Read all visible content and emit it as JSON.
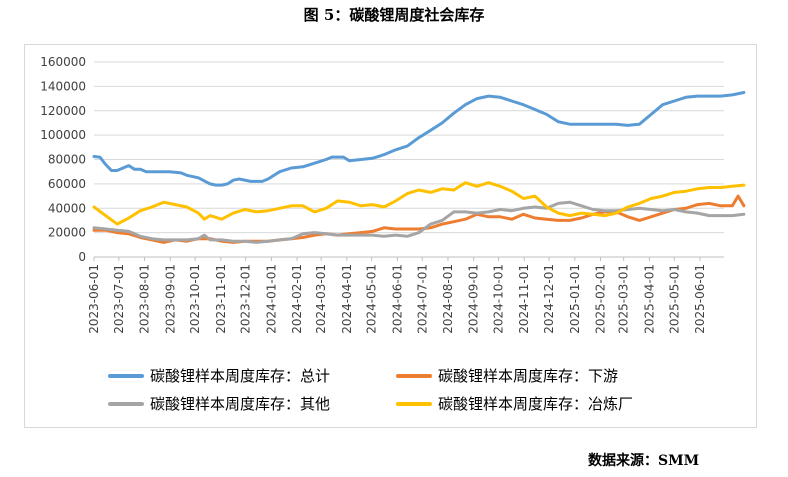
{
  "chart_data": {
    "type": "line",
    "title": "图 5：碳酸锂周度社会库存",
    "source": "数据来源：SMM",
    "ylim": [
      0,
      160000
    ],
    "y_ticks": [
      "0",
      "20000",
      "40000",
      "60000",
      "80000",
      "100000",
      "120000",
      "140000",
      "160000"
    ],
    "x_ticks": [
      "2023-06-01",
      "2023-07-01",
      "2023-08-01",
      "2023-09-01",
      "2023-10-01",
      "2023-11-01",
      "2023-12-01",
      "2024-01-01",
      "2024-02-01",
      "2024-03-01",
      "2024-04-01",
      "2024-05-01",
      "2024-06-01",
      "2024-07-01",
      "2024-08-01",
      "2024-09-01",
      "2024-10-01",
      "2024-11-01",
      "2024-12-01",
      "2025-01-01",
      "2025-02-01",
      "2025-03-01",
      "2025-04-01",
      "2025-05-01",
      "2025-06-01"
    ],
    "x_range": [
      "2023-06-01",
      "2025-06-30"
    ],
    "grid": "horizontal",
    "legend_position": "bottom",
    "series": [
      {
        "name": "碳酸锂样本周度库存：总计",
        "color": "#5b9bd5",
        "points": [
          [
            "2023-06-01",
            82500
          ],
          [
            "2023-06-08",
            82000
          ],
          [
            "2023-06-15",
            76000
          ],
          [
            "2023-06-22",
            71000
          ],
          [
            "2023-06-29",
            71000
          ],
          [
            "2023-07-06",
            73000
          ],
          [
            "2023-07-13",
            75000
          ],
          [
            "2023-07-20",
            72000
          ],
          [
            "2023-07-27",
            72000
          ],
          [
            "2023-08-03",
            70000
          ],
          [
            "2023-08-17",
            70000
          ],
          [
            "2023-08-31",
            70000
          ],
          [
            "2023-09-14",
            69000
          ],
          [
            "2023-09-21",
            67000
          ],
          [
            "2023-10-05",
            65000
          ],
          [
            "2023-10-19",
            60000
          ],
          [
            "2023-10-26",
            59000
          ],
          [
            "2023-11-02",
            59000
          ],
          [
            "2023-11-09",
            60000
          ],
          [
            "2023-11-16",
            63000
          ],
          [
            "2023-11-23",
            64000
          ],
          [
            "2023-12-07",
            62000
          ],
          [
            "2023-12-21",
            62000
          ],
          [
            "2023-12-28",
            64000
          ],
          [
            "2024-01-11",
            70000
          ],
          [
            "2024-01-25",
            73000
          ],
          [
            "2024-02-08",
            74000
          ],
          [
            "2024-02-22",
            77000
          ],
          [
            "2024-03-07",
            80000
          ],
          [
            "2024-03-14",
            82000
          ],
          [
            "2024-03-28",
            82000
          ],
          [
            "2024-04-04",
            79000
          ],
          [
            "2024-04-18",
            80000
          ],
          [
            "2024-05-02",
            81000
          ],
          [
            "2024-05-16",
            84000
          ],
          [
            "2024-05-30",
            88000
          ],
          [
            "2024-06-13",
            91000
          ],
          [
            "2024-06-27",
            98000
          ],
          [
            "2024-07-11",
            104000
          ],
          [
            "2024-07-25",
            110000
          ],
          [
            "2024-08-08",
            118000
          ],
          [
            "2024-08-22",
            125000
          ],
          [
            "2024-09-05",
            130000
          ],
          [
            "2024-09-19",
            132000
          ],
          [
            "2024-10-03",
            131000
          ],
          [
            "2024-10-17",
            128000
          ],
          [
            "2024-10-31",
            125000
          ],
          [
            "2024-11-14",
            121000
          ],
          [
            "2024-11-28",
            117000
          ],
          [
            "2024-12-12",
            111000
          ],
          [
            "2024-12-26",
            109000
          ],
          [
            "2025-01-09",
            109000
          ],
          [
            "2025-01-23",
            109000
          ],
          [
            "2025-02-06",
            109000
          ],
          [
            "2025-02-20",
            109000
          ],
          [
            "2025-03-06",
            108000
          ],
          [
            "2025-03-20",
            109000
          ],
          [
            "2025-04-03",
            117000
          ],
          [
            "2025-04-17",
            125000
          ],
          [
            "2025-05-01",
            128000
          ],
          [
            "2025-05-15",
            131000
          ],
          [
            "2025-05-29",
            132000
          ],
          [
            "2025-06-12",
            132000
          ],
          [
            "2025-06-26",
            132000
          ],
          [
            "2025-07-10",
            133000
          ],
          [
            "2025-07-24",
            135000
          ]
        ]
      },
      {
        "name": "碳酸锂样本周度库存：下游",
        "color": "#ed7d31",
        "points": [
          [
            "2023-06-01",
            22000
          ],
          [
            "2023-06-15",
            22000
          ],
          [
            "2023-06-29",
            20000
          ],
          [
            "2023-07-13",
            19000
          ],
          [
            "2023-07-27",
            16000
          ],
          [
            "2023-08-10",
            14000
          ],
          [
            "2023-08-24",
            12000
          ],
          [
            "2023-09-07",
            14000
          ],
          [
            "2023-09-21",
            13000
          ],
          [
            "2023-10-05",
            15000
          ],
          [
            "2023-10-19",
            15000
          ],
          [
            "2023-11-02",
            13000
          ],
          [
            "2023-11-16",
            12000
          ],
          [
            "2023-11-30",
            13000
          ],
          [
            "2023-12-14",
            13000
          ],
          [
            "2023-12-28",
            13000
          ],
          [
            "2024-01-11",
            14000
          ],
          [
            "2024-01-25",
            15000
          ],
          [
            "2024-02-08",
            16000
          ],
          [
            "2024-02-22",
            18000
          ],
          [
            "2024-03-07",
            19000
          ],
          [
            "2024-03-21",
            18000
          ],
          [
            "2024-04-04",
            19000
          ],
          [
            "2024-04-18",
            20000
          ],
          [
            "2024-05-02",
            21000
          ],
          [
            "2024-05-16",
            24000
          ],
          [
            "2024-05-30",
            23000
          ],
          [
            "2024-06-13",
            23000
          ],
          [
            "2024-06-27",
            23000
          ],
          [
            "2024-07-11",
            24000
          ],
          [
            "2024-07-25",
            27000
          ],
          [
            "2024-08-08",
            29000
          ],
          [
            "2024-08-22",
            31000
          ],
          [
            "2024-09-05",
            35000
          ],
          [
            "2024-09-19",
            33000
          ],
          [
            "2024-10-03",
            33000
          ],
          [
            "2024-10-17",
            31000
          ],
          [
            "2024-10-31",
            35000
          ],
          [
            "2024-11-14",
            32000
          ],
          [
            "2024-11-28",
            31000
          ],
          [
            "2024-12-12",
            30000
          ],
          [
            "2024-12-26",
            30000
          ],
          [
            "2025-01-09",
            32000
          ],
          [
            "2025-01-23",
            35000
          ],
          [
            "2025-02-06",
            37000
          ],
          [
            "2025-02-20",
            37000
          ],
          [
            "2025-03-06",
            33000
          ],
          [
            "2025-03-20",
            30000
          ],
          [
            "2025-04-03",
            33000
          ],
          [
            "2025-04-17",
            36000
          ],
          [
            "2025-05-01",
            39000
          ],
          [
            "2025-05-15",
            40000
          ],
          [
            "2025-05-29",
            43000
          ],
          [
            "2025-06-12",
            44000
          ],
          [
            "2025-06-26",
            42000
          ],
          [
            "2025-07-10",
            42000
          ],
          [
            "2025-07-17",
            50000
          ],
          [
            "2025-07-24",
            42000
          ]
        ]
      },
      {
        "name": "碳酸锂样本周度库存：其他",
        "color": "#a5a5a5",
        "points": [
          [
            "2023-06-01",
            24000
          ],
          [
            "2023-06-15",
            23000
          ],
          [
            "2023-06-29",
            22000
          ],
          [
            "2023-07-13",
            21000
          ],
          [
            "2023-07-27",
            17000
          ],
          [
            "2023-08-10",
            15000
          ],
          [
            "2023-08-24",
            14000
          ],
          [
            "2023-09-07",
            14000
          ],
          [
            "2023-09-21",
            14000
          ],
          [
            "2023-10-05",
            15000
          ],
          [
            "2023-10-12",
            18000
          ],
          [
            "2023-10-19",
            14000
          ],
          [
            "2023-11-02",
            14000
          ],
          [
            "2023-11-16",
            13000
          ],
          [
            "2023-11-30",
            13000
          ],
          [
            "2023-12-14",
            12000
          ],
          [
            "2023-12-28",
            13000
          ],
          [
            "2024-01-11",
            14000
          ],
          [
            "2024-01-25",
            15000
          ],
          [
            "2024-02-08",
            19000
          ],
          [
            "2024-02-22",
            20000
          ],
          [
            "2024-03-07",
            19000
          ],
          [
            "2024-03-21",
            18000
          ],
          [
            "2024-04-04",
            18000
          ],
          [
            "2024-04-18",
            18000
          ],
          [
            "2024-05-02",
            18000
          ],
          [
            "2024-05-16",
            17000
          ],
          [
            "2024-05-30",
            18000
          ],
          [
            "2024-06-13",
            17000
          ],
          [
            "2024-06-27",
            20000
          ],
          [
            "2024-07-11",
            27000
          ],
          [
            "2024-07-25",
            30000
          ],
          [
            "2024-08-08",
            37000
          ],
          [
            "2024-08-22",
            37000
          ],
          [
            "2024-09-05",
            36000
          ],
          [
            "2024-09-19",
            37000
          ],
          [
            "2024-10-03",
            39000
          ],
          [
            "2024-10-17",
            38000
          ],
          [
            "2024-10-31",
            40000
          ],
          [
            "2024-11-14",
            41000
          ],
          [
            "2024-11-28",
            40000
          ],
          [
            "2024-12-12",
            44000
          ],
          [
            "2024-12-26",
            45000
          ],
          [
            "2025-01-09",
            42000
          ],
          [
            "2025-01-23",
            39000
          ],
          [
            "2025-02-06",
            38000
          ],
          [
            "2025-02-20",
            38000
          ],
          [
            "2025-03-06",
            39000
          ],
          [
            "2025-03-20",
            40000
          ],
          [
            "2025-04-03",
            39000
          ],
          [
            "2025-04-17",
            38000
          ],
          [
            "2025-05-01",
            39000
          ],
          [
            "2025-05-15",
            37000
          ],
          [
            "2025-05-29",
            36000
          ],
          [
            "2025-06-12",
            34000
          ],
          [
            "2025-06-26",
            34000
          ],
          [
            "2025-07-10",
            34000
          ],
          [
            "2025-07-24",
            35000
          ]
        ]
      },
      {
        "name": "碳酸锂样本周度库存：冶炼厂",
        "color": "#ffc000",
        "points": [
          [
            "2023-06-01",
            41000
          ],
          [
            "2023-06-15",
            34000
          ],
          [
            "2023-06-29",
            27000
          ],
          [
            "2023-07-13",
            32000
          ],
          [
            "2023-07-27",
            38000
          ],
          [
            "2023-08-10",
            41000
          ],
          [
            "2023-08-24",
            45000
          ],
          [
            "2023-09-07",
            43000
          ],
          [
            "2023-09-21",
            41000
          ],
          [
            "2023-10-05",
            36000
          ],
          [
            "2023-10-12",
            31000
          ],
          [
            "2023-10-19",
            34000
          ],
          [
            "2023-11-02",
            31000
          ],
          [
            "2023-11-16",
            36000
          ],
          [
            "2023-11-30",
            39000
          ],
          [
            "2023-12-14",
            37000
          ],
          [
            "2023-12-28",
            38000
          ],
          [
            "2024-01-11",
            40000
          ],
          [
            "2024-01-25",
            42000
          ],
          [
            "2024-02-08",
            42000
          ],
          [
            "2024-02-22",
            37000
          ],
          [
            "2024-03-07",
            40000
          ],
          [
            "2024-03-21",
            46000
          ],
          [
            "2024-04-04",
            45000
          ],
          [
            "2024-04-18",
            42000
          ],
          [
            "2024-05-02",
            43000
          ],
          [
            "2024-05-16",
            41000
          ],
          [
            "2024-05-30",
            46000
          ],
          [
            "2024-06-13",
            52000
          ],
          [
            "2024-06-27",
            55000
          ],
          [
            "2024-07-11",
            53000
          ],
          [
            "2024-07-25",
            56000
          ],
          [
            "2024-08-08",
            55000
          ],
          [
            "2024-08-22",
            61000
          ],
          [
            "2024-09-05",
            58000
          ],
          [
            "2024-09-19",
            61000
          ],
          [
            "2024-10-03",
            58000
          ],
          [
            "2024-10-17",
            54000
          ],
          [
            "2024-10-31",
            48000
          ],
          [
            "2024-11-14",
            50000
          ],
          [
            "2024-11-28",
            41000
          ],
          [
            "2024-12-12",
            36000
          ],
          [
            "2024-12-26",
            34000
          ],
          [
            "2025-01-09",
            36000
          ],
          [
            "2025-01-23",
            35000
          ],
          [
            "2025-02-06",
            34000
          ],
          [
            "2025-02-20",
            36000
          ],
          [
            "2025-03-06",
            41000
          ],
          [
            "2025-03-20",
            44000
          ],
          [
            "2025-04-03",
            48000
          ],
          [
            "2025-04-17",
            50000
          ],
          [
            "2025-05-01",
            53000
          ],
          [
            "2025-05-15",
            54000
          ],
          [
            "2025-05-29",
            56000
          ],
          [
            "2025-06-12",
            57000
          ],
          [
            "2025-06-26",
            57000
          ],
          [
            "2025-07-10",
            58000
          ],
          [
            "2025-07-24",
            59000
          ]
        ]
      }
    ]
  }
}
